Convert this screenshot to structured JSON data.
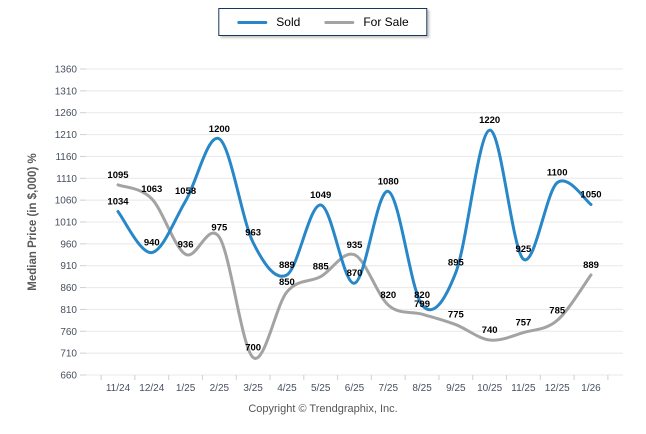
{
  "legend": {
    "items": [
      {
        "label": "Sold",
        "color": "#2787c8"
      },
      {
        "label": "For Sale",
        "color": "#a3a3a3"
      }
    ]
  },
  "footer": {
    "copyright": "Copyright © Trendgraphix, Inc."
  },
  "chart_data": {
    "type": "line",
    "title": "",
    "xlabel": "",
    "ylabel": "Median Price (in $,000) %",
    "categories": [
      "11/24",
      "12/24",
      "1/25",
      "2/25",
      "3/25",
      "4/25",
      "5/25",
      "6/25",
      "7/25",
      "8/25",
      "9/25",
      "10/25",
      "11/25",
      "12/25",
      "1/26"
    ],
    "series": [
      {
        "name": "Sold",
        "color": "#2787c8",
        "values": [
          1034,
          940,
          1058,
          1200,
          963,
          889,
          1049,
          870,
          1080,
          820,
          895,
          1220,
          925,
          1100,
          1050
        ]
      },
      {
        "name": "For Sale",
        "color": "#a3a3a3",
        "values": [
          1095,
          1063,
          936,
          975,
          700,
          850,
          885,
          935,
          820,
          799,
          775,
          740,
          757,
          785,
          889
        ]
      }
    ],
    "ylim": [
      660,
      1360
    ],
    "ytick_step": 50,
    "yticks": [
      660,
      710,
      760,
      810,
      860,
      910,
      960,
      1010,
      1060,
      1110,
      1160,
      1210,
      1260,
      1310,
      1360
    ],
    "grid": true,
    "smooth": true,
    "data_labels": true,
    "legend_position": "top",
    "colors": {
      "gridline": "#e8e8e8",
      "tick": "#d0d0d0",
      "axis_text": "#47505f",
      "legend_border": "#17365d"
    }
  }
}
